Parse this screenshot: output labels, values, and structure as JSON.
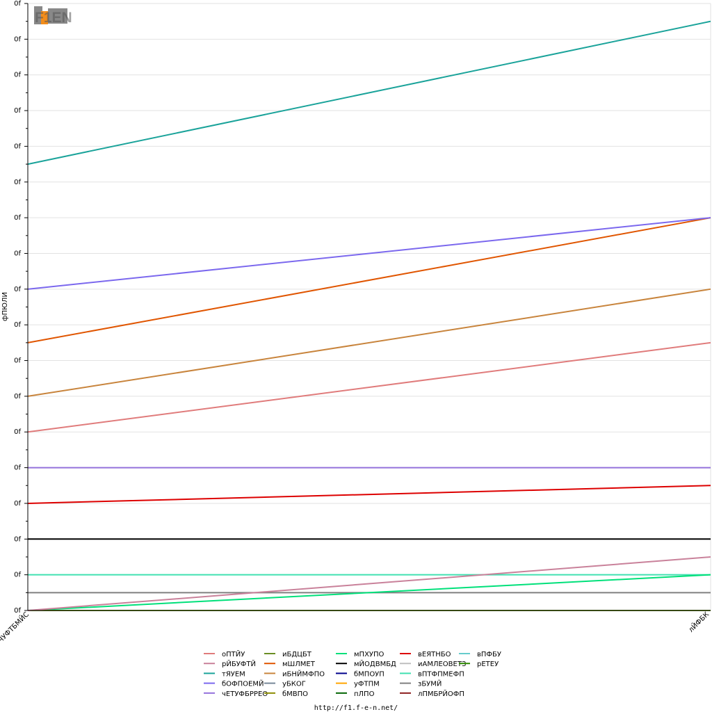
{
  "logo": {
    "text": "F1EN",
    "colors": {
      "main": "#888888",
      "accent": "#f28c1a",
      "dark": "#555555"
    }
  },
  "footer": {
    "url": "http://f1.f-e-n.net/"
  },
  "chart_data": {
    "type": "line",
    "title": "",
    "ylabel": "фПЮЛИ",
    "xlabel": "",
    "categories": [
      "бЧУФТБМЙС",
      "лЙФБК"
    ],
    "y_tick_labels": [
      "0f",
      "0f",
      "0f",
      "0f",
      "0f",
      "0f",
      "0f",
      "0f",
      "0f",
      "0f",
      "0f",
      "0f",
      "0f",
      "0f",
      "0f",
      "0f",
      "0f",
      "0f"
    ],
    "ylim": [
      0,
      17
    ],
    "grid": true,
    "legend_position": "bottom",
    "series": [
      {
        "name": "оПТЙУ",
        "color": "#e07b7b",
        "values": [
          5,
          7.5
        ]
      },
      {
        "name": "рЙБУФТЙ",
        "color": "#c9819a",
        "values": [
          0,
          1.5
        ]
      },
      {
        "name": "тЯУЕМ",
        "color": "#1aa39a",
        "values": [
          12.5,
          16.5
        ]
      },
      {
        "name": "бОФПОЕМЙ",
        "color": "#7b68ee",
        "values": [
          9,
          11
        ]
      },
      {
        "name": "чЕТУФБРРЕО",
        "color": "#9370db",
        "values": [
          4,
          4
        ]
      },
      {
        "name": "иБДЦБТ",
        "color": "#6b8e23",
        "values": [
          0,
          0
        ]
      },
      {
        "name": "мШЛМЕТ",
        "color": "#e05500",
        "values": [
          7.5,
          11
        ]
      },
      {
        "name": "иБНЙМФПО",
        "color": "#c8843c",
        "values": [
          6,
          9
        ]
      },
      {
        "name": "уБКОГ",
        "color": "#778899",
        "values": [
          0,
          0
        ]
      },
      {
        "name": "бМВПО",
        "color": "#8b8b00",
        "values": [
          0,
          0
        ]
      },
      {
        "name": "мПХУПО",
        "color": "#00e07a",
        "values": [
          0,
          1
        ]
      },
      {
        "name": "мЙОДВМБД",
        "color": "#000000",
        "values": [
          2,
          2
        ]
      },
      {
        "name": "бМПОУП",
        "color": "#00008b",
        "values": [
          0,
          0
        ]
      },
      {
        "name": "уФТПМ",
        "color": "#ffa500",
        "values": [
          0,
          0
        ]
      },
      {
        "name": "пЛПО",
        "color": "#006400",
        "values": [
          0,
          0
        ]
      },
      {
        "name": "вЕЯТНБО",
        "color": "#dd0000",
        "values": [
          3,
          3.5
        ]
      },
      {
        "name": "иАМЛЕОВЕТЗ",
        "color": "#c0c0c0",
        "values": [
          0,
          0
        ]
      },
      {
        "name": "вПТФПМЕФП",
        "color": "#40e0b0",
        "values": [
          1,
          1
        ]
      },
      {
        "name": "зБУМЙ",
        "color": "#808080",
        "values": [
          0.5,
          0.5
        ]
      },
      {
        "name": "лПМБРЙОФП",
        "color": "#8b1a1a",
        "values": [
          0,
          0
        ]
      },
      {
        "name": "вПФБУ",
        "color": "#66cccc",
        "values": [
          0,
          0
        ]
      },
      {
        "name": "рЕТЕУ",
        "color": "#2e8b00",
        "values": [
          0,
          0
        ]
      }
    ]
  }
}
